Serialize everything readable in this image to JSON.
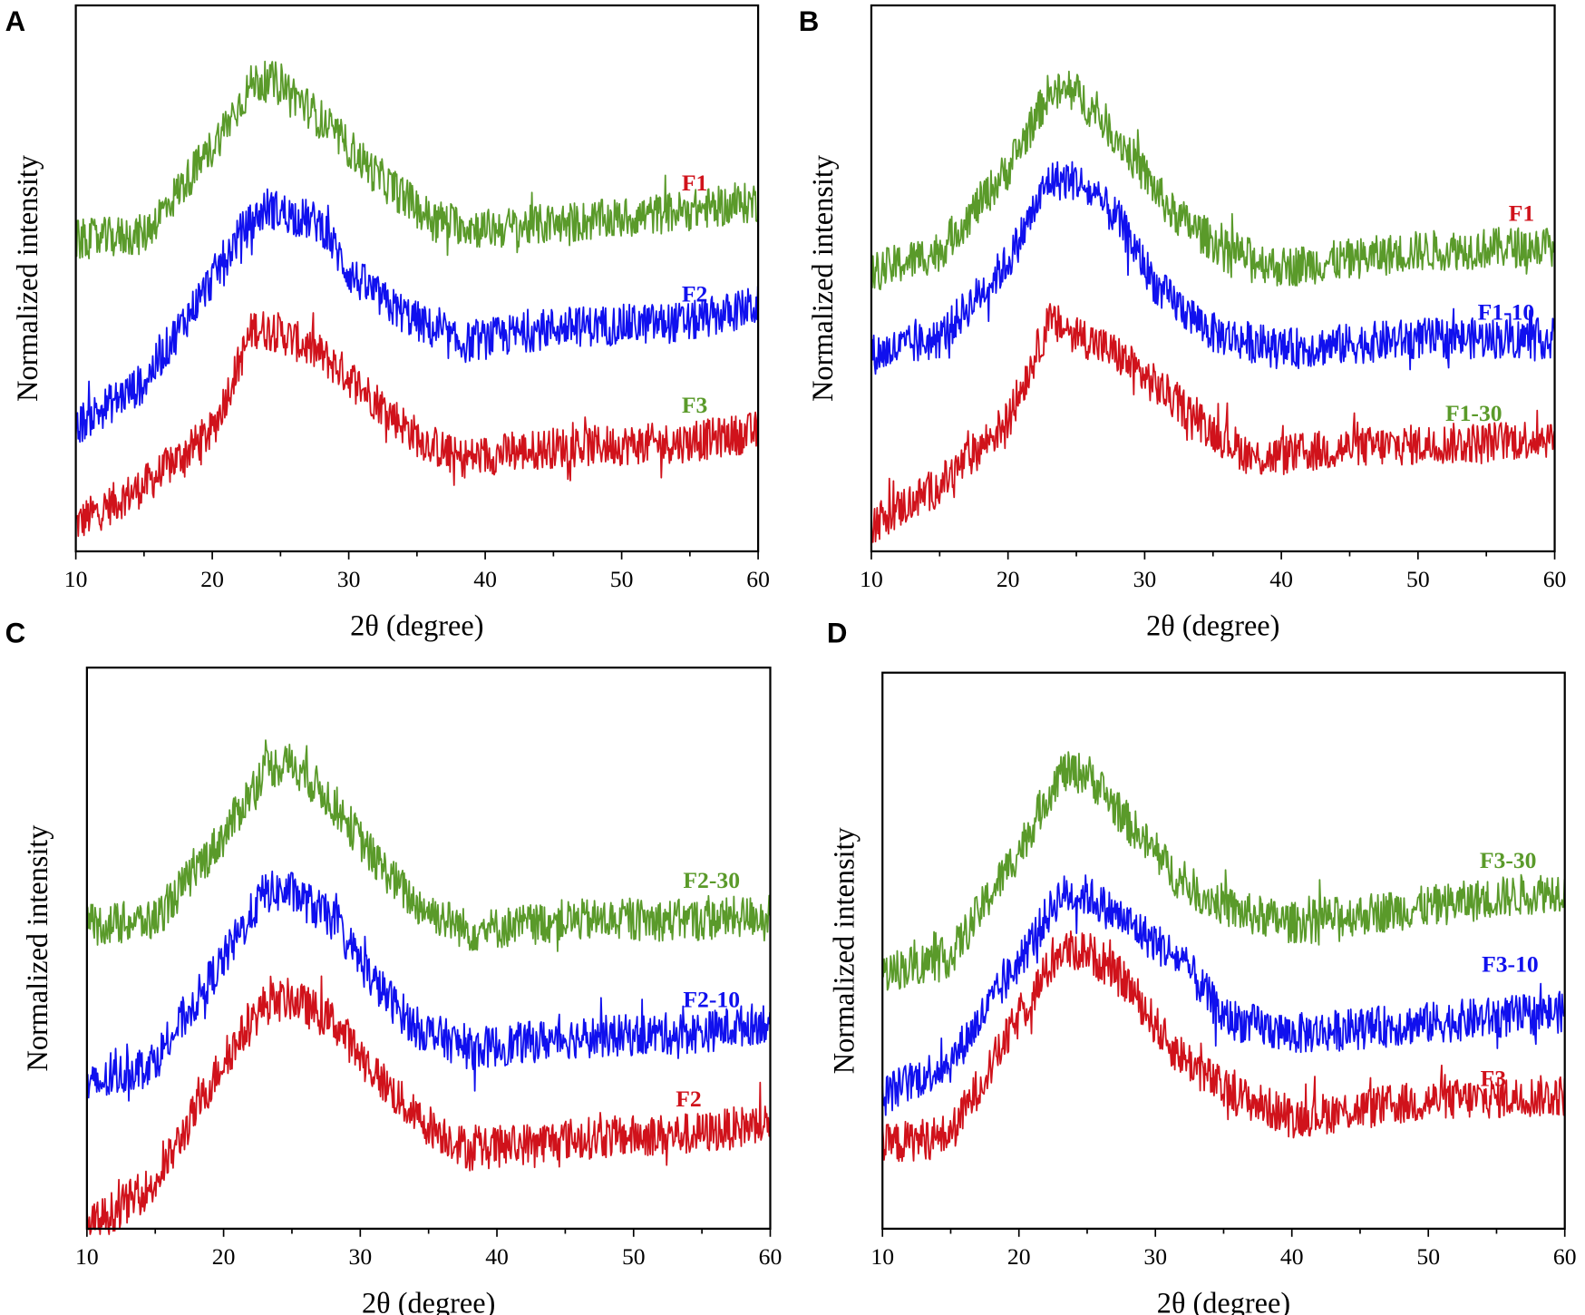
{
  "chart_data": [
    {
      "type": "line",
      "panel": "A",
      "xlabel": "2θ (degree)",
      "ylabel": "Normalized intensity",
      "xlim": [
        10,
        60
      ],
      "xticks": [
        10,
        20,
        30,
        40,
        50,
        60
      ],
      "series": [
        {
          "name": "F1",
          "color": "#d0121b",
          "points": [
            [
              10,
              0.05
            ],
            [
              15,
              0.12
            ],
            [
              20,
              0.22
            ],
            [
              23,
              0.41
            ],
            [
              25,
              0.4
            ],
            [
              28,
              0.36
            ],
            [
              30,
              0.32
            ],
            [
              35,
              0.21
            ],
            [
              38,
              0.17
            ],
            [
              45,
              0.19
            ],
            [
              55,
              0.2
            ],
            [
              60,
              0.22
            ]
          ]
        },
        {
          "name": "F2",
          "color": "#1010ee",
          "points": [
            [
              10,
              0.23
            ],
            [
              15,
              0.31
            ],
            [
              20,
              0.5
            ],
            [
              22,
              0.58
            ],
            [
              24,
              0.63
            ],
            [
              28,
              0.6
            ],
            [
              30,
              0.51
            ],
            [
              33,
              0.45
            ],
            [
              38,
              0.38
            ],
            [
              45,
              0.41
            ],
            [
              55,
              0.42
            ],
            [
              60,
              0.45
            ]
          ]
        },
        {
          "name": "F3",
          "color": "#5a9a2a",
          "points": [
            [
              10,
              0.57
            ],
            [
              15,
              0.58
            ],
            [
              20,
              0.74
            ],
            [
              23,
              0.86
            ],
            [
              25,
              0.86
            ],
            [
              28,
              0.79
            ],
            [
              32,
              0.69
            ],
            [
              36,
              0.61
            ],
            [
              40,
              0.59
            ],
            [
              50,
              0.61
            ],
            [
              60,
              0.64
            ]
          ]
        }
      ]
    },
    {
      "type": "line",
      "panel": "B",
      "xlabel": "2θ (degree)",
      "ylabel": "Normalized intensity",
      "xlim": [
        10,
        60
      ],
      "xticks": [
        10,
        20,
        30,
        40,
        50,
        60
      ],
      "series": [
        {
          "name": "F1",
          "color": "#d0121b",
          "points": [
            [
              10,
              0.05
            ],
            [
              15,
              0.12
            ],
            [
              20,
              0.24
            ],
            [
              23,
              0.42
            ],
            [
              25,
              0.4
            ],
            [
              28,
              0.36
            ],
            [
              31,
              0.3
            ],
            [
              35,
              0.22
            ],
            [
              38,
              0.17
            ],
            [
              45,
              0.19
            ],
            [
              55,
              0.2
            ],
            [
              60,
              0.21
            ]
          ]
        },
        {
          "name": "F1-10",
          "color": "#1010ee",
          "points": [
            [
              10,
              0.36
            ],
            [
              15,
              0.39
            ],
            [
              20,
              0.53
            ],
            [
              23,
              0.68
            ],
            [
              25,
              0.68
            ],
            [
              28,
              0.61
            ],
            [
              31,
              0.48
            ],
            [
              35,
              0.4
            ],
            [
              40,
              0.37
            ],
            [
              50,
              0.39
            ],
            [
              60,
              0.39
            ]
          ]
        },
        {
          "name": "F1-30",
          "color": "#5a9a2a",
          "points": [
            [
              10,
              0.51
            ],
            [
              15,
              0.55
            ],
            [
              20,
              0.7
            ],
            [
              23,
              0.84
            ],
            [
              25,
              0.84
            ],
            [
              28,
              0.76
            ],
            [
              32,
              0.62
            ],
            [
              36,
              0.55
            ],
            [
              40,
              0.52
            ],
            [
              50,
              0.55
            ],
            [
              60,
              0.56
            ]
          ]
        }
      ]
    },
    {
      "type": "line",
      "panel": "C",
      "xlabel": "2θ (degree)",
      "ylabel": "Normalized intensity",
      "xlim": [
        10,
        60
      ],
      "xticks": [
        10,
        20,
        30,
        40,
        50,
        60
      ],
      "series": [
        {
          "name": "F2",
          "color": "#d0121b",
          "points": [
            [
              10,
              0.0
            ],
            [
              15,
              0.08
            ],
            [
              20,
              0.3
            ],
            [
              23,
              0.4
            ],
            [
              25,
              0.41
            ],
            [
              28,
              0.37
            ],
            [
              31,
              0.28
            ],
            [
              34,
              0.2
            ],
            [
              38,
              0.14
            ],
            [
              45,
              0.16
            ],
            [
              55,
              0.17
            ],
            [
              60,
              0.19
            ]
          ]
        },
        {
          "name": "F2-10",
          "color": "#1010ee",
          "points": [
            [
              10,
              0.25
            ],
            [
              15,
              0.3
            ],
            [
              20,
              0.48
            ],
            [
              23,
              0.6
            ],
            [
              25,
              0.6
            ],
            [
              28,
              0.55
            ],
            [
              31,
              0.44
            ],
            [
              34,
              0.36
            ],
            [
              38,
              0.32
            ],
            [
              45,
              0.34
            ],
            [
              55,
              0.35
            ],
            [
              60,
              0.37
            ]
          ]
        },
        {
          "name": "F2-30",
          "color": "#5a9a2a",
          "points": [
            [
              10,
              0.54
            ],
            [
              15,
              0.55
            ],
            [
              20,
              0.7
            ],
            [
              23,
              0.82
            ],
            [
              25,
              0.83
            ],
            [
              28,
              0.76
            ],
            [
              31,
              0.66
            ],
            [
              34,
              0.58
            ],
            [
              38,
              0.53
            ],
            [
              45,
              0.55
            ],
            [
              55,
              0.55
            ],
            [
              60,
              0.56
            ]
          ]
        }
      ]
    },
    {
      "type": "line",
      "panel": "D",
      "xlabel": "2θ (degree)",
      "ylabel": "Normalized intensity",
      "xlim": [
        10,
        60
      ],
      "xticks": [
        10,
        20,
        30,
        40,
        50,
        60
      ],
      "series": [
        {
          "name": "F3",
          "color": "#d0121b",
          "points": [
            [
              10,
              0.15
            ],
            [
              15,
              0.17
            ],
            [
              20,
              0.38
            ],
            [
              23,
              0.5
            ],
            [
              25,
              0.5
            ],
            [
              28,
              0.44
            ],
            [
              31,
              0.33
            ],
            [
              35,
              0.25
            ],
            [
              40,
              0.2
            ],
            [
              50,
              0.23
            ],
            [
              60,
              0.24
            ]
          ]
        },
        {
          "name": "F3-10",
          "color": "#1010ee",
          "points": [
            [
              10,
              0.24
            ],
            [
              15,
              0.3
            ],
            [
              20,
              0.48
            ],
            [
              23,
              0.6
            ],
            [
              25,
              0.6
            ],
            [
              28,
              0.55
            ],
            [
              32,
              0.48
            ],
            [
              35,
              0.38
            ],
            [
              40,
              0.35
            ],
            [
              50,
              0.37
            ],
            [
              60,
              0.39
            ]
          ]
        },
        {
          "name": "F3-30",
          "color": "#5a9a2a",
          "points": [
            [
              10,
              0.46
            ],
            [
              15,
              0.49
            ],
            [
              20,
              0.68
            ],
            [
              23,
              0.82
            ],
            [
              25,
              0.82
            ],
            [
              28,
              0.73
            ],
            [
              32,
              0.62
            ],
            [
              36,
              0.57
            ],
            [
              40,
              0.55
            ],
            [
              50,
              0.58
            ],
            [
              60,
              0.61
            ]
          ]
        }
      ]
    }
  ]
}
